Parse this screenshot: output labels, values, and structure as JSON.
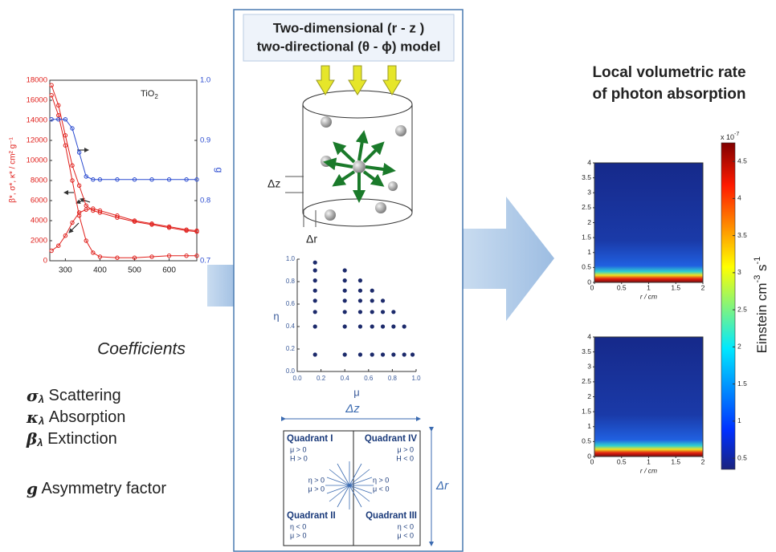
{
  "chart_data": [
    {
      "type": "line",
      "annotation": "TiO",
      "annotation_sub": "2",
      "ylabel": "β*, σ*, κ* / cm² g⁻¹",
      "y2label": "g",
      "x": [
        260,
        280,
        300,
        320,
        340,
        360,
        380,
        400,
        450,
        500,
        550,
        600,
        650,
        680
      ],
      "xlim": [
        255,
        680
      ],
      "xticks": [
        300,
        400,
        500,
        600
      ],
      "ylim": [
        0,
        18000
      ],
      "yticks": [
        0,
        2000,
        4000,
        6000,
        8000,
        10000,
        12000,
        14000,
        16000,
        18000
      ],
      "y2lim": [
        0.7,
        1.0
      ],
      "y2ticks": [
        0.7,
        0.8,
        0.9,
        {
          "value": 1.0,
          "label": "1.0"
        }
      ],
      "series": [
        {
          "color": "#e0201c",
          "values": [
            17500,
            15500,
            12500,
            9500,
            7500,
            5500,
            5000,
            4800,
            4300,
            3900,
            3600,
            3300,
            3000,
            2900
          ]
        },
        {
          "color": "#e0201c",
          "values": [
            16500,
            14500,
            11500,
            8000,
            4500,
            2000,
            800,
            400,
            300,
            300,
            400,
            500,
            500,
            500
          ]
        },
        {
          "color": "#e0201c",
          "values": [
            1000,
            1500,
            2500,
            3800,
            4800,
            5100,
            5200,
            5000,
            4500,
            4000,
            3700,
            3400,
            3100,
            3000
          ]
        },
        {
          "color": "#2a4bd0",
          "axis": "y2",
          "values": [
            0.935,
            0.935,
            0.935,
            0.92,
            0.88,
            0.84,
            0.835,
            0.835,
            0.835,
            0.835,
            0.835,
            0.835,
            0.835,
            0.835
          ]
        }
      ]
    },
    {
      "type": "scatter",
      "xlabel": "μ",
      "ylabel": "η",
      "xlim": [
        0,
        1
      ],
      "ylim": [
        0,
        1
      ],
      "xticks": [
        {
          "value": 0,
          "label": "0.0"
        },
        0.2,
        0.4,
        0.6,
        0.8,
        {
          "value": 1,
          "label": "1.0"
        }
      ],
      "yticks": [
        {
          "value": 0,
          "label": "0.0"
        },
        0.2,
        0.4,
        0.6,
        0.8,
        {
          "value": 1,
          "label": "1.0"
        }
      ],
      "series": [
        {
          "color": "#1c2a6b",
          "x": [
            0.15,
            0.15,
            0.15,
            0.15,
            0.15,
            0.15,
            0.15,
            0.15,
            0.4,
            0.4,
            0.4,
            0.4,
            0.4,
            0.4,
            0.4,
            0.53,
            0.53,
            0.53,
            0.53,
            0.53,
            0.53,
            0.63,
            0.63,
            0.63,
            0.63,
            0.63,
            0.72,
            0.72,
            0.72,
            0.72,
            0.81,
            0.81,
            0.81,
            0.9,
            0.9,
            0.97
          ],
          "y": [
            0.15,
            0.4,
            0.53,
            0.63,
            0.72,
            0.81,
            0.9,
            0.97,
            0.15,
            0.4,
            0.53,
            0.63,
            0.72,
            0.81,
            0.9,
            0.15,
            0.4,
            0.53,
            0.63,
            0.72,
            0.81,
            0.15,
            0.4,
            0.53,
            0.63,
            0.72,
            0.15,
            0.4,
            0.53,
            0.63,
            0.15,
            0.4,
            0.53,
            0.15,
            0.4,
            0.15
          ]
        }
      ]
    },
    {
      "type": "heatmap",
      "xlabel": "r / cm",
      "xlim": [
        0,
        2
      ],
      "xticks": [
        0,
        0.5,
        1,
        1.5,
        2
      ],
      "ylim": [
        0,
        4
      ],
      "yticks": [
        0,
        0.5,
        1,
        1.5,
        2,
        2.5,
        3,
        3.5,
        4
      ]
    },
    {
      "type": "heatmap",
      "xlabel": "r / cm",
      "xlim": [
        0,
        2
      ],
      "xticks": [
        0,
        0.5,
        1,
        1.5,
        2
      ],
      "ylim": [
        0,
        4
      ],
      "yticks": [
        0,
        0.5,
        1,
        1.5,
        2,
        2.5,
        3,
        3.5,
        4
      ]
    },
    {
      "type": "colorbar",
      "scale_label": "x 10",
      "scale_exp": "-7",
      "label": "Einstein cm",
      "label_exp1": "-3",
      "label_mid": " s",
      "label_exp2": "-1",
      "clim": [
        0.35,
        4.75
      ],
      "ticks": [
        0.5,
        1,
        1.5,
        2,
        2.5,
        3,
        3.5,
        4,
        4.5
      ]
    }
  ],
  "left": {
    "heading": "Coefficients",
    "items": [
      {
        "symbol": "σ",
        "sub": "λ",
        "label": " Scattering"
      },
      {
        "symbol": "κ",
        "sub": "λ",
        "label": " Absorption"
      },
      {
        "symbol": "β",
        "sub": "λ",
        "label": " Extinction"
      },
      {
        "symbol": "g",
        "label": " Asymmetry factor"
      }
    ]
  },
  "center": {
    "title": [
      "Two-dimensional (r - z )",
      "two-directional (θ - ϕ) model"
    ],
    "delta_z": "Δz",
    "delta_r": "Δr",
    "quadrant": {
      "delta_z": "Δz",
      "delta_r": "Δr",
      "cells": [
        {
          "name": "Quadrant I",
          "lines": [
            "μ > 0",
            "H > 0"
          ]
        },
        {
          "name": "Quadrant IV",
          "lines": [
            "μ > 0",
            "H < 0"
          ]
        },
        {
          "name": "Quadrant II",
          "lines": [
            "η < 0",
            "μ > 0"
          ]
        },
        {
          "name": "Quadrant III",
          "lines": [
            "η < 0",
            "μ < 0"
          ]
        }
      ],
      "middle": [
        [
          "η > 0",
          "μ > 0"
        ],
        [
          "η > 0",
          "μ < 0"
        ]
      ]
    }
  },
  "right": {
    "title": [
      "Local volumetric rate",
      "of photon absorption"
    ]
  }
}
